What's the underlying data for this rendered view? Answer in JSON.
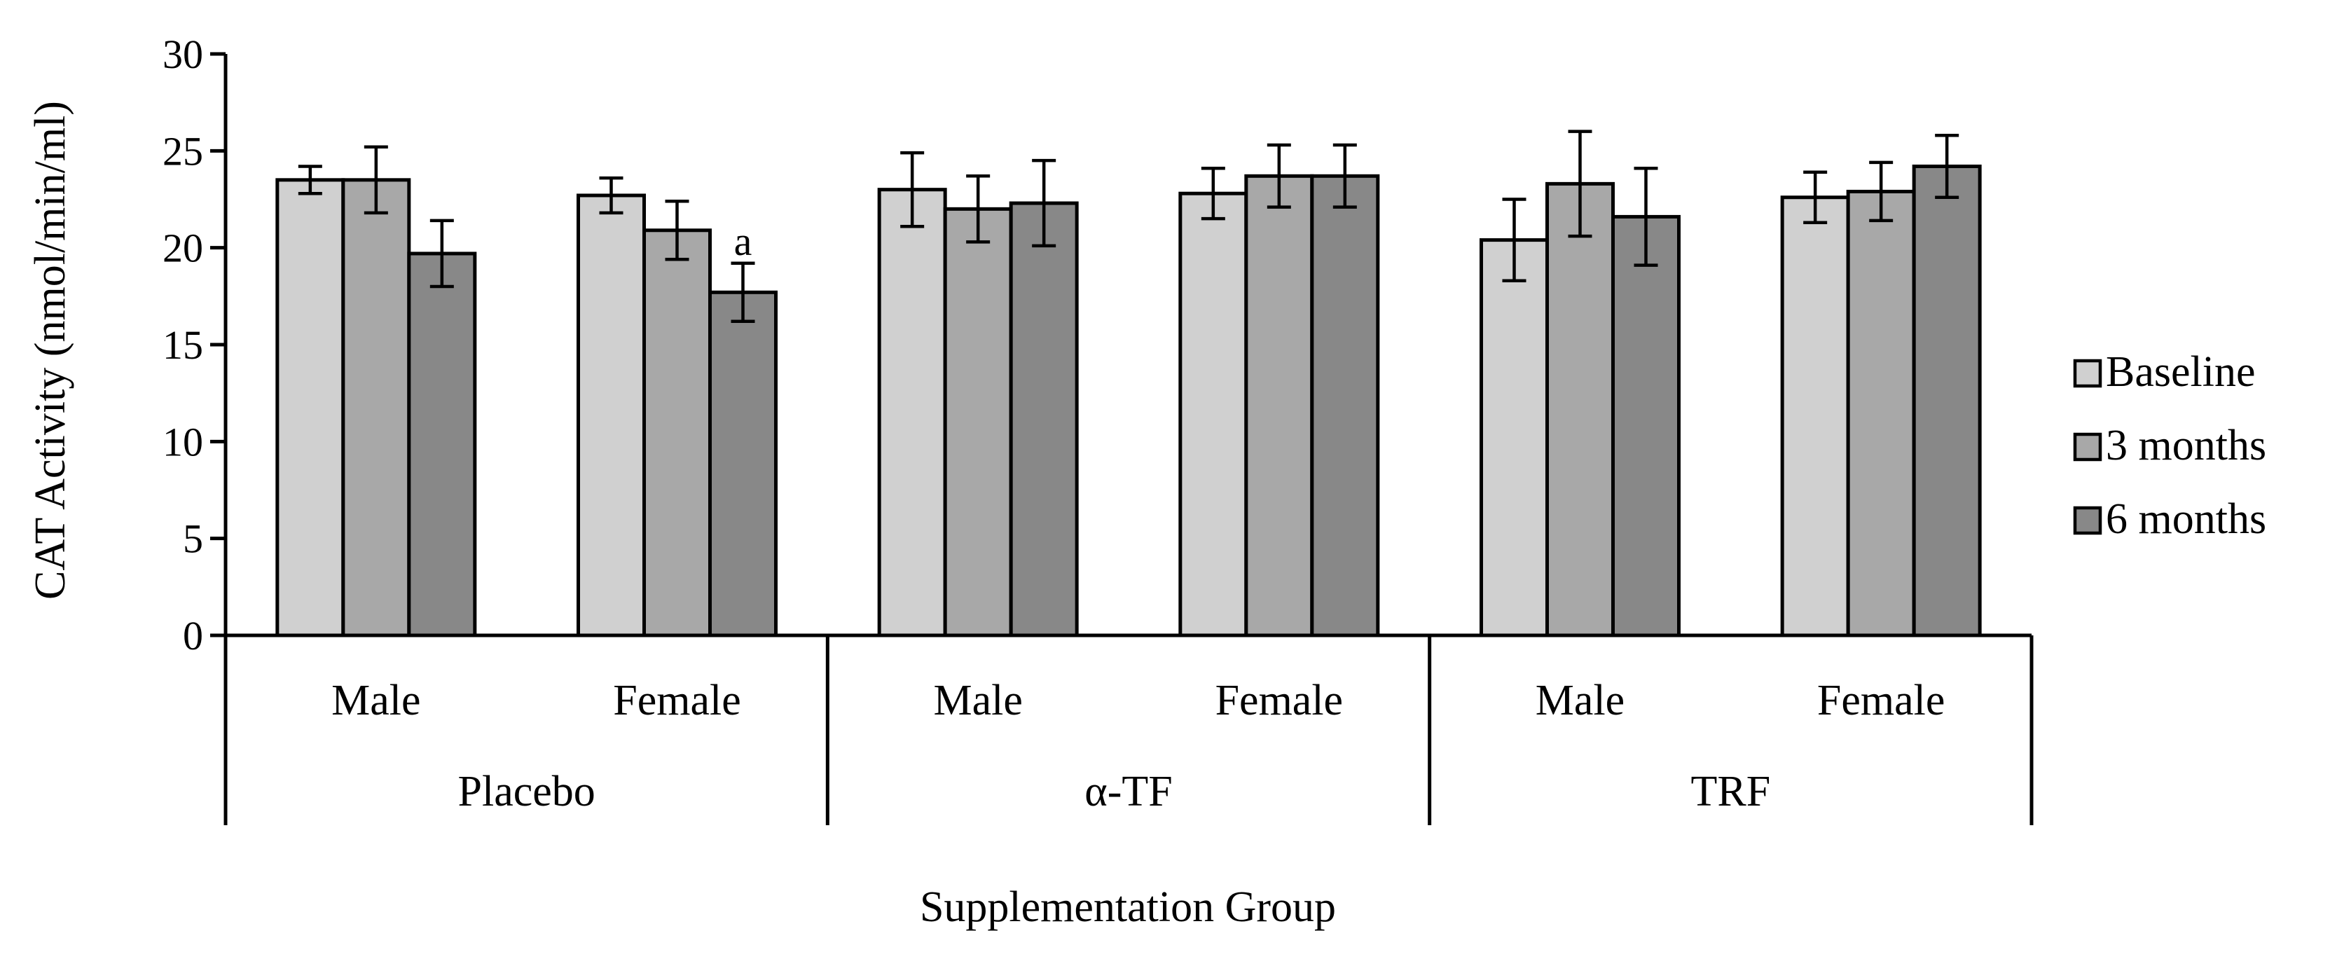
{
  "chart_data": {
    "type": "bar",
    "title": "",
    "xlabel": "Supplementation Group",
    "ylabel": "CAT Activity (nmol/min/ml)",
    "ylim": [
      0,
      30
    ],
    "yticks": [
      "0",
      "5",
      "10",
      "15",
      "20",
      "25",
      "30"
    ],
    "grid": false,
    "legend_position": "right",
    "groups": [
      {
        "name": "Placebo",
        "categories": [
          "Male",
          "Female"
        ]
      },
      {
        "name": "α-TF",
        "categories": [
          "Male",
          "Female"
        ]
      },
      {
        "name": "TRF",
        "categories": [
          "Male",
          "Female"
        ]
      }
    ],
    "categories": [
      "Male",
      "Female",
      "Male",
      "Female",
      "Male",
      "Female"
    ],
    "series": [
      {
        "name": "Baseline",
        "color": "#d0d0d0",
        "values": [
          23.5,
          22.7,
          23.0,
          22.8,
          20.4,
          22.6
        ],
        "errors": [
          0.7,
          0.9,
          1.9,
          1.3,
          2.1,
          1.3
        ]
      },
      {
        "name": "3 months",
        "color": "#a8a8a8",
        "values": [
          23.5,
          20.9,
          22.0,
          23.7,
          23.3,
          22.9
        ],
        "errors": [
          1.7,
          1.5,
          1.7,
          1.6,
          2.7,
          1.5
        ]
      },
      {
        "name": "6 months",
        "color": "#888888",
        "values": [
          19.7,
          17.7,
          22.3,
          23.7,
          21.6,
          24.2
        ],
        "errors": [
          1.7,
          1.5,
          2.2,
          1.6,
          2.5,
          1.6
        ]
      }
    ],
    "annotations": [
      {
        "text": "a",
        "category_index": 1,
        "series_index": 2
      }
    ]
  }
}
